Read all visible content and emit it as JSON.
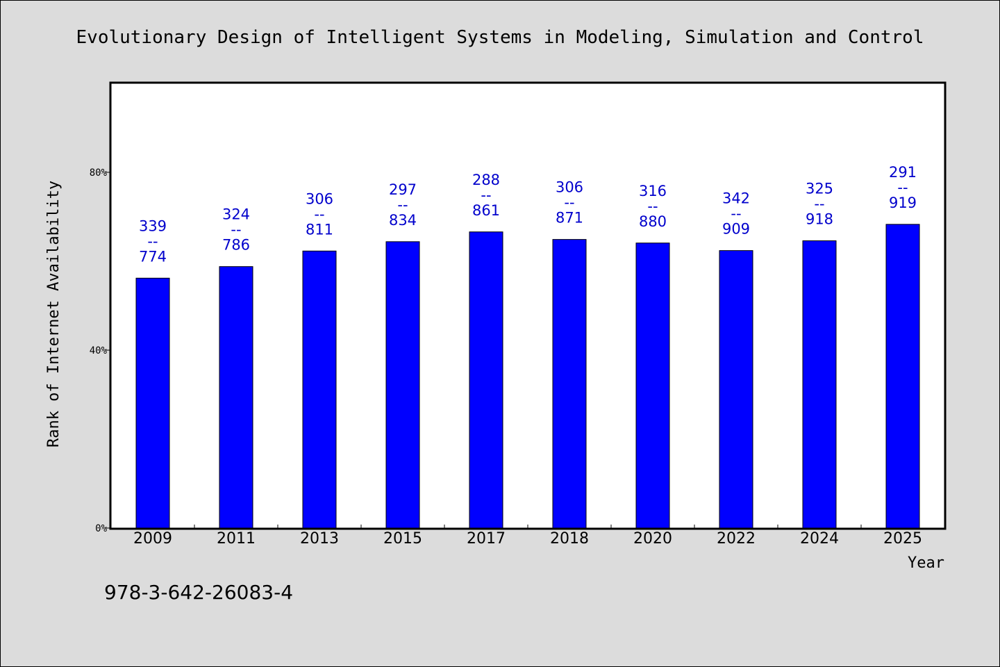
{
  "footer": {
    "isbn": "978-3-642-26083-4"
  },
  "chart_data": {
    "type": "bar",
    "title": "Evolutionary Design of Intelligent Systems in Modeling, Simulation and Control",
    "xlabel": "Year",
    "ylabel": "Rank of Internet Availability",
    "ylim": [
      0,
      100
    ],
    "yticks": [
      "0%",
      "40%",
      "80%"
    ],
    "grid": false,
    "bar_color": "#0000ff",
    "label_color": "#0000cc",
    "categories": [
      "2009",
      "2011",
      "2013",
      "2015",
      "2017",
      "2018",
      "2020",
      "2022",
      "2024",
      "2025"
    ],
    "values": [
      56.2,
      58.8,
      62.3,
      64.4,
      66.6,
      64.9,
      64.1,
      62.4,
      64.6,
      68.3
    ],
    "data_labels": [
      {
        "rank": "339",
        "sep": "--",
        "total": "774"
      },
      {
        "rank": "324",
        "sep": "--",
        "total": "786"
      },
      {
        "rank": "306",
        "sep": "--",
        "total": "811"
      },
      {
        "rank": "297",
        "sep": "--",
        "total": "834"
      },
      {
        "rank": "288",
        "sep": "--",
        "total": "861"
      },
      {
        "rank": "306",
        "sep": "--",
        "total": "871"
      },
      {
        "rank": "316",
        "sep": "--",
        "total": "880"
      },
      {
        "rank": "342",
        "sep": "--",
        "total": "909"
      },
      {
        "rank": "325",
        "sep": "--",
        "total": "918"
      },
      {
        "rank": "291",
        "sep": "--",
        "total": "919"
      }
    ]
  }
}
